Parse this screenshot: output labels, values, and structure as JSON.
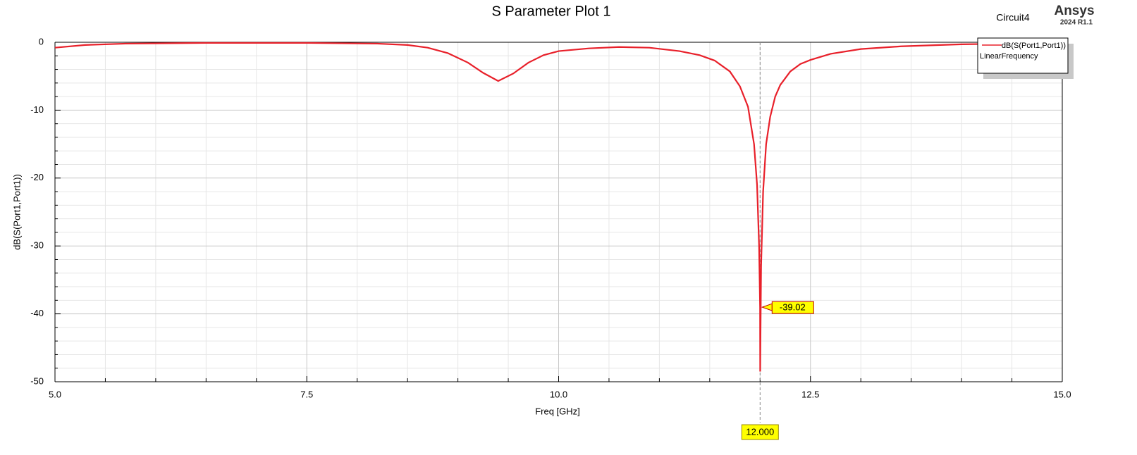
{
  "chart_data": {
    "type": "line",
    "title": "S Parameter Plot 1",
    "design": "Circuit4",
    "brand": "Ansys",
    "version": "2024 R1.1",
    "xlabel": "Freq [GHz]",
    "ylabel": "dB(S(Port1,Port1))",
    "xlim": [
      5,
      15
    ],
    "ylim": [
      -50,
      0
    ],
    "xticks": [
      {
        "value": 5,
        "label": "5.0"
      },
      {
        "value": 7.5,
        "label": "7.5"
      },
      {
        "value": 10,
        "label": "10.0"
      },
      {
        "value": 12.5,
        "label": "12.5"
      },
      {
        "value": 15,
        "label": "15.0"
      }
    ],
    "yticks": [
      -50,
      -40,
      -30,
      -20,
      -10,
      0
    ],
    "x_minor_ticks": [
      5.5,
      6,
      6.5,
      7,
      8,
      8.5,
      9,
      9.5,
      10.5,
      11,
      11.5,
      12,
      13,
      13.5,
      14,
      14.5
    ],
    "y_minor_ticks": [
      -48,
      -46,
      -44,
      -42,
      -38,
      -36,
      -34,
      -32,
      -28,
      -26,
      -24,
      -22,
      -18,
      -16,
      -14,
      -12,
      -8,
      -6,
      -4,
      -2
    ],
    "grid": true,
    "legend": "upper right",
    "series": [
      {
        "name": "dB(S(Port1,Port1))",
        "sweep": "LinearFrequency",
        "color": "#e8202a",
        "x": [
          5.0,
          5.3,
          5.7,
          6.5,
          7.5,
          8.2,
          8.5,
          8.7,
          8.9,
          9.1,
          9.25,
          9.4,
          9.55,
          9.7,
          9.85,
          10.0,
          10.3,
          10.6,
          10.9,
          11.2,
          11.4,
          11.55,
          11.7,
          11.8,
          11.88,
          11.94,
          11.97,
          11.99,
          12.0,
          12.001,
          12.01,
          12.03,
          12.06,
          12.1,
          12.15,
          12.2,
          12.3,
          12.4,
          12.5,
          12.7,
          13.0,
          13.4,
          14.0,
          14.5,
          15.0
        ],
        "values": [
          -0.8,
          -0.4,
          -0.2,
          -0.1,
          -0.1,
          -0.2,
          -0.4,
          -0.8,
          -1.6,
          -3.0,
          -4.5,
          -5.7,
          -4.6,
          -3.0,
          -1.9,
          -1.3,
          -0.9,
          -0.7,
          -0.8,
          -1.3,
          -1.9,
          -2.7,
          -4.3,
          -6.5,
          -9.5,
          -15,
          -21,
          -30,
          -39.02,
          -48.5,
          -33,
          -22,
          -15,
          -11,
          -8,
          -6.3,
          -4.3,
          -3.2,
          -2.6,
          -1.7,
          -1.0,
          -0.6,
          -0.3,
          -0.2,
          -0.3
        ]
      }
    ],
    "marker": {
      "x": {
        "value": 12,
        "label": "12.000"
      },
      "y": -39.02
    }
  }
}
